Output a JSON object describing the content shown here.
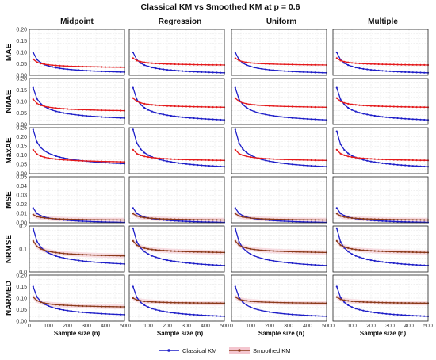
{
  "chart_data": {
    "type": "line",
    "title": "Classical KM vs Smoothed KM at p = 0.6",
    "xlabel": "Sample size (n)",
    "columns": [
      "Midpoint",
      "Regression",
      "Uniform",
      "Multiple"
    ],
    "rows": [
      {
        "label": "MAE",
        "ylim": [
          0,
          0.2
        ],
        "yticks": [
          "0.00",
          "0.05",
          "0.10",
          "0.15",
          "0.20"
        ]
      },
      {
        "label": "NMAE",
        "ylim": [
          0,
          0.2
        ],
        "yticks": [
          "0.00",
          "0.05",
          "0.10",
          "0.15",
          "0.20"
        ]
      },
      {
        "label": "MaxAE",
        "ylim": [
          0,
          0.25
        ],
        "yticks": [
          "0.00",
          "0.05",
          "0.10",
          "0.15",
          "0.20",
          "0.25"
        ]
      },
      {
        "label": "MSE",
        "ylim": [
          0,
          0.05
        ],
        "yticks": [
          "0.00",
          "0.01",
          "0.02",
          "0.03",
          "0.04",
          "0.05"
        ]
      },
      {
        "label": "NRMSE",
        "ylim": [
          0,
          0.2
        ],
        "yticks": [
          "0.0",
          "0.1",
          "0.2"
        ]
      },
      {
        "label": "NARMED",
        "ylim": [
          0,
          0.2
        ],
        "yticks": [
          "0.00",
          "0.05",
          "0.10",
          "0.15",
          "0.20"
        ]
      }
    ],
    "xlim": [
      0,
      500
    ],
    "xticks": [
      "0",
      "100",
      "200",
      "300",
      "400",
      "500"
    ],
    "x": [
      20,
      40,
      60,
      80,
      100,
      120,
      140,
      160,
      180,
      200,
      220,
      240,
      260,
      280,
      300,
      320,
      340,
      360,
      380,
      400,
      420,
      440,
      460,
      480,
      500
    ],
    "series_names": [
      "Classical KM",
      "Smoothed KM"
    ],
    "colors": {
      "classical": "#1f1fc8",
      "smoothed_red": "#e41a1c",
      "smoothed_brown": "#8b3a1a",
      "band": "#f4c6cf"
    },
    "smoothed_color_by_row": [
      "red",
      "red",
      "red",
      "brown",
      "brown",
      "brown"
    ],
    "endpoints": {
      "classical": [
        [
          [
            0.1,
            0.014
          ],
          [
            0.1,
            0.011
          ],
          [
            0.1,
            0.011
          ],
          [
            0.1,
            0.011
          ]
        ],
        [
          [
            0.16,
            0.028
          ],
          [
            0.16,
            0.02
          ],
          [
            0.16,
            0.02
          ],
          [
            0.16,
            0.02
          ]
        ],
        [
          [
            0.24,
            0.054
          ],
          [
            0.24,
            0.038
          ],
          [
            0.24,
            0.038
          ],
          [
            0.23,
            0.038
          ]
        ],
        [
          [
            0.016,
            0.0004
          ],
          [
            0.016,
            0.0004
          ],
          [
            0.016,
            0.0004
          ],
          [
            0.016,
            0.0004
          ]
        ],
        [
          [
            0.19,
            0.035
          ],
          [
            0.19,
            0.028
          ],
          [
            0.19,
            0.028
          ],
          [
            0.19,
            0.028
          ]
        ],
        [
          [
            0.15,
            0.028
          ],
          [
            0.15,
            0.021
          ],
          [
            0.15,
            0.021
          ],
          [
            0.15,
            0.021
          ]
        ]
      ],
      "smoothed": [
        [
          [
            0.07,
            0.035
          ],
          [
            0.075,
            0.045
          ],
          [
            0.075,
            0.045
          ],
          [
            0.075,
            0.045
          ]
        ],
        [
          [
            0.11,
            0.06
          ],
          [
            0.115,
            0.075
          ],
          [
            0.115,
            0.075
          ],
          [
            0.115,
            0.075
          ]
        ],
        [
          [
            0.13,
            0.064
          ],
          [
            0.13,
            0.072
          ],
          [
            0.13,
            0.072
          ],
          [
            0.13,
            0.072
          ]
        ],
        [
          [
            0.009,
            0.003
          ],
          [
            0.01,
            0.003
          ],
          [
            0.01,
            0.003
          ],
          [
            0.01,
            0.003
          ]
        ],
        [
          [
            0.135,
            0.07
          ],
          [
            0.135,
            0.085
          ],
          [
            0.135,
            0.085
          ],
          [
            0.135,
            0.085
          ]
        ],
        [
          [
            0.105,
            0.062
          ],
          [
            0.1,
            0.078
          ],
          [
            0.105,
            0.078
          ],
          [
            0.105,
            0.078
          ]
        ]
      ]
    },
    "legend_placement": "bottom",
    "grid": true
  }
}
